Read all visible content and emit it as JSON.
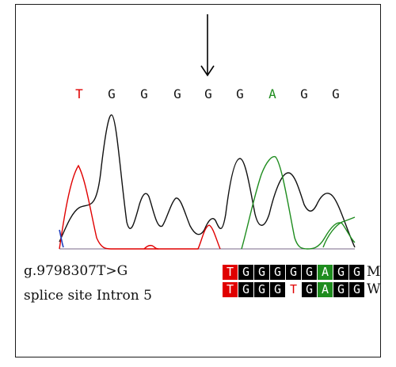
{
  "bases": [
    {
      "letter": "T",
      "color": "#e00000"
    },
    {
      "letter": "G",
      "color": "#111111"
    },
    {
      "letter": "G",
      "color": "#111111"
    },
    {
      "letter": "G",
      "color": "#111111"
    },
    {
      "letter": "G",
      "color": "#111111"
    },
    {
      "letter": "G",
      "color": "#111111"
    },
    {
      "letter": "A",
      "color": "#1e8c1e"
    },
    {
      "letter": "G",
      "color": "#111111"
    },
    {
      "letter": "G",
      "color": "#111111"
    }
  ],
  "trace_colors": {
    "G": "#111111",
    "T": "#e00000",
    "A": "#1e8c1e",
    "C": "#1f3fbf"
  },
  "caption": {
    "line1": "g.9798307T>G",
    "line2": "splice site Intron 5"
  },
  "sequences": [
    {
      "cells": [
        {
          "letter": "T",
          "style": "red-bg"
        },
        {
          "letter": "G",
          "style": "black"
        },
        {
          "letter": "G",
          "style": "black"
        },
        {
          "letter": "G",
          "style": "black"
        },
        {
          "letter": "G",
          "style": "black"
        },
        {
          "letter": "G",
          "style": "black"
        },
        {
          "letter": "A",
          "style": "green-bg"
        },
        {
          "letter": "G",
          "style": "black"
        },
        {
          "letter": "G",
          "style": "black"
        }
      ],
      "suffix": "M"
    },
    {
      "cells": [
        {
          "letter": "T",
          "style": "red-bg"
        },
        {
          "letter": "G",
          "style": "black"
        },
        {
          "letter": "G",
          "style": "black"
        },
        {
          "letter": "G",
          "style": "black"
        },
        {
          "letter": "T",
          "style": "white-bg"
        },
        {
          "letter": "G",
          "style": "black"
        },
        {
          "letter": "A",
          "style": "green-bg"
        },
        {
          "letter": "G",
          "style": "black"
        },
        {
          "letter": "G",
          "style": "black"
        }
      ],
      "suffix": "W"
    }
  ]
}
